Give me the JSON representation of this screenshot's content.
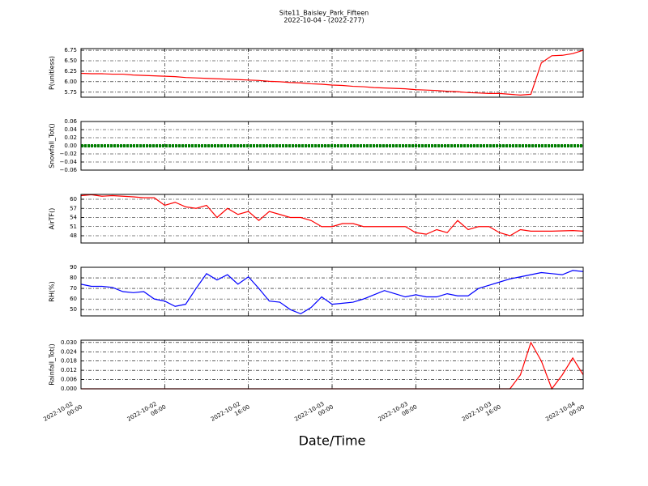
{
  "chart_data": [
    {
      "type": "line",
      "title": "Site11_Baisley_Park_Fifteen",
      "subtitle": "2022-10-04 - (2022-277)",
      "ylabel": "P(unitless)",
      "color": "#ff0000",
      "xlim": [
        "2022-10-02 00:00",
        "2022-10-04 00:00"
      ],
      "ylim": [
        5.63,
        6.79
      ],
      "grid": true,
      "yticks": [
        5.75,
        {
          "value": 6,
          "label": "6.00"
        },
        6.25,
        {
          "value": 6.5,
          "label": "6.50"
        },
        6.75
      ],
      "xticks": [
        "2022-10-02 00:00",
        "2022-10-02 08:00",
        "2022-10-02 16:00",
        "2022-10-03 00:00",
        "2022-10-03 08:00",
        "2022-10-03 16:00",
        "2022-10-04 00:00"
      ],
      "x": [
        "2022-10-02 00:00",
        "2022-10-02 01:00",
        "2022-10-02 02:00",
        "2022-10-02 03:00",
        "2022-10-02 04:00",
        "2022-10-02 05:00",
        "2022-10-02 06:00",
        "2022-10-02 07:00",
        "2022-10-02 08:00",
        "2022-10-02 09:00",
        "2022-10-02 10:00",
        "2022-10-02 11:00",
        "2022-10-02 12:00",
        "2022-10-02 13:00",
        "2022-10-02 14:00",
        "2022-10-02 15:00",
        "2022-10-02 16:00",
        "2022-10-02 17:00",
        "2022-10-02 18:00",
        "2022-10-02 19:00",
        "2022-10-02 20:00",
        "2022-10-02 21:00",
        "2022-10-02 22:00",
        "2022-10-02 23:00",
        "2022-10-03 00:00",
        "2022-10-03 01:00",
        "2022-10-03 02:00",
        "2022-10-03 03:00",
        "2022-10-03 04:00",
        "2022-10-03 05:00",
        "2022-10-03 06:00",
        "2022-10-03 07:00",
        "2022-10-03 08:00",
        "2022-10-03 09:00",
        "2022-10-03 10:00",
        "2022-10-03 11:00",
        "2022-10-03 12:00",
        "2022-10-03 13:00",
        "2022-10-03 14:00",
        "2022-10-03 15:00",
        "2022-10-03 16:00",
        "2022-10-03 17:00",
        "2022-10-03 18:00",
        "2022-10-03 19:00",
        "2022-10-03 20:00",
        "2022-10-03 21:00",
        "2022-10-03 22:00",
        "2022-10-03 23:00",
        "2022-10-04 00:00"
      ],
      "values": [
        6.2,
        6.19,
        6.19,
        6.18,
        6.18,
        6.16,
        6.15,
        6.14,
        6.13,
        6.12,
        6.1,
        6.09,
        6.08,
        6.07,
        6.06,
        6.05,
        6.04,
        6.03,
        6.01,
        6.0,
        5.98,
        5.97,
        5.95,
        5.94,
        5.92,
        5.91,
        5.89,
        5.88,
        5.86,
        5.85,
        5.84,
        5.83,
        5.81,
        5.8,
        5.79,
        5.77,
        5.76,
        5.74,
        5.73,
        5.72,
        5.72,
        5.7,
        5.68,
        5.7,
        6.45,
        6.62,
        6.63,
        6.67,
        6.75
      ]
    },
    {
      "type": "line",
      "ylabel": "Snowfall_Tot()",
      "color": "#008000",
      "xlim": [
        "2022-10-02 00:00",
        "2022-10-04 00:00"
      ],
      "ylim": [
        -0.06,
        0.06
      ],
      "grid": true,
      "yticks": [
        {
          "value": -0.06,
          "label": "−0.06"
        },
        {
          "value": -0.04,
          "label": "−0.04"
        },
        {
          "value": -0.02,
          "label": "−0.02"
        },
        {
          "value": 0,
          "label": "0.00"
        },
        0.02,
        0.04,
        0.06
      ],
      "xticks": [
        "2022-10-02 00:00",
        "2022-10-02 08:00",
        "2022-10-02 16:00",
        "2022-10-03 00:00",
        "2022-10-03 08:00",
        "2022-10-03 16:00",
        "2022-10-04 00:00"
      ],
      "x": [
        "2022-10-02 00:00",
        "2022-10-02 01:00",
        "2022-10-02 02:00",
        "2022-10-02 03:00",
        "2022-10-02 04:00",
        "2022-10-02 05:00",
        "2022-10-02 06:00",
        "2022-10-02 07:00",
        "2022-10-02 08:00",
        "2022-10-02 09:00",
        "2022-10-02 10:00",
        "2022-10-02 11:00",
        "2022-10-02 12:00",
        "2022-10-02 13:00",
        "2022-10-02 14:00",
        "2022-10-02 15:00",
        "2022-10-02 16:00",
        "2022-10-02 17:00",
        "2022-10-02 18:00",
        "2022-10-02 19:00",
        "2022-10-02 20:00",
        "2022-10-02 21:00",
        "2022-10-02 22:00",
        "2022-10-02 23:00",
        "2022-10-03 00:00",
        "2022-10-03 01:00",
        "2022-10-03 02:00",
        "2022-10-03 03:00",
        "2022-10-03 04:00",
        "2022-10-03 05:00",
        "2022-10-03 06:00",
        "2022-10-03 07:00",
        "2022-10-03 08:00",
        "2022-10-03 09:00",
        "2022-10-03 10:00",
        "2022-10-03 11:00",
        "2022-10-03 12:00",
        "2022-10-03 13:00",
        "2022-10-03 14:00",
        "2022-10-03 15:00",
        "2022-10-03 16:00",
        "2022-10-03 17:00",
        "2022-10-03 18:00",
        "2022-10-03 19:00",
        "2022-10-03 20:00",
        "2022-10-03 21:00",
        "2022-10-03 22:00",
        "2022-10-03 23:00",
        "2022-10-04 00:00"
      ],
      "values": [
        0,
        0,
        0,
        0,
        0,
        0,
        0,
        0,
        0,
        0,
        0,
        0,
        0,
        0,
        0,
        0,
        0,
        0,
        0,
        0,
        0,
        0,
        0,
        0,
        0,
        0,
        0,
        0,
        0,
        0,
        0,
        0,
        0,
        0,
        0,
        0,
        0,
        0,
        0,
        0,
        0,
        0,
        0,
        0,
        0,
        0,
        0,
        0,
        0
      ]
    },
    {
      "type": "line",
      "ylabel": "AirTF()",
      "color": "#ff0000",
      "xlim": [
        "2022-10-02 00:00",
        "2022-10-04 00:00"
      ],
      "ylim": [
        45.6,
        61.6
      ],
      "grid": true,
      "yticks": [
        48,
        51,
        54,
        57,
        60
      ],
      "xticks": [
        "2022-10-02 00:00",
        "2022-10-02 08:00",
        "2022-10-02 16:00",
        "2022-10-03 00:00",
        "2022-10-03 08:00",
        "2022-10-03 16:00",
        "2022-10-04 00:00"
      ],
      "x": [
        "2022-10-02 00:00",
        "2022-10-02 01:00",
        "2022-10-02 02:00",
        "2022-10-02 03:00",
        "2022-10-02 04:00",
        "2022-10-02 05:00",
        "2022-10-02 06:00",
        "2022-10-02 07:00",
        "2022-10-02 08:00",
        "2022-10-02 09:00",
        "2022-10-02 10:00",
        "2022-10-02 11:00",
        "2022-10-02 12:00",
        "2022-10-02 13:00",
        "2022-10-02 14:00",
        "2022-10-02 15:00",
        "2022-10-02 16:00",
        "2022-10-02 17:00",
        "2022-10-02 18:00",
        "2022-10-02 19:00",
        "2022-10-02 20:00",
        "2022-10-02 21:00",
        "2022-10-02 22:00",
        "2022-10-02 23:00",
        "2022-10-03 00:00",
        "2022-10-03 01:00",
        "2022-10-03 02:00",
        "2022-10-03 03:00",
        "2022-10-03 04:00",
        "2022-10-03 05:00",
        "2022-10-03 06:00",
        "2022-10-03 07:00",
        "2022-10-03 08:00",
        "2022-10-03 09:00",
        "2022-10-03 10:00",
        "2022-10-03 11:00",
        "2022-10-03 12:00",
        "2022-10-03 13:00",
        "2022-10-03 14:00",
        "2022-10-03 15:00",
        "2022-10-03 16:00",
        "2022-10-03 17:00",
        "2022-10-03 18:00",
        "2022-10-03 19:00",
        "2022-10-03 20:00",
        "2022-10-03 21:00",
        "2022-10-03 22:00",
        "2022-10-03 23:00",
        "2022-10-04 00:00"
      ],
      "values": [
        61.2,
        61.5,
        61,
        61.2,
        61,
        60.8,
        60.5,
        60.5,
        58,
        59,
        57.5,
        57,
        58,
        54,
        57,
        55,
        56,
        53,
        56,
        55,
        54,
        54,
        53,
        51,
        51,
        52,
        52,
        51,
        51,
        51,
        51,
        51,
        49,
        48.5,
        50,
        49,
        53,
        50,
        51,
        51,
        49,
        48,
        50,
        49.5,
        49.5,
        49.5,
        49.6,
        49.7,
        49.5
      ]
    },
    {
      "type": "line",
      "ylabel": "RH(%)",
      "color": "#0000ff",
      "xlim": [
        "2022-10-02 00:00",
        "2022-10-04 00:00"
      ],
      "ylim": [
        44,
        90
      ],
      "grid": true,
      "yticks": [
        50,
        60,
        70,
        80,
        90
      ],
      "xticks": [
        "2022-10-02 00:00",
        "2022-10-02 08:00",
        "2022-10-02 16:00",
        "2022-10-03 00:00",
        "2022-10-03 08:00",
        "2022-10-03 16:00",
        "2022-10-04 00:00"
      ],
      "x": [
        "2022-10-02 00:00",
        "2022-10-02 01:00",
        "2022-10-02 02:00",
        "2022-10-02 03:00",
        "2022-10-02 04:00",
        "2022-10-02 05:00",
        "2022-10-02 06:00",
        "2022-10-02 07:00",
        "2022-10-02 08:00",
        "2022-10-02 09:00",
        "2022-10-02 10:00",
        "2022-10-02 11:00",
        "2022-10-02 12:00",
        "2022-10-02 13:00",
        "2022-10-02 14:00",
        "2022-10-02 15:00",
        "2022-10-02 16:00",
        "2022-10-02 17:00",
        "2022-10-02 18:00",
        "2022-10-02 19:00",
        "2022-10-02 20:00",
        "2022-10-02 21:00",
        "2022-10-02 22:00",
        "2022-10-02 23:00",
        "2022-10-03 00:00",
        "2022-10-03 01:00",
        "2022-10-03 02:00",
        "2022-10-03 03:00",
        "2022-10-03 04:00",
        "2022-10-03 05:00",
        "2022-10-03 06:00",
        "2022-10-03 07:00",
        "2022-10-03 08:00",
        "2022-10-03 09:00",
        "2022-10-03 10:00",
        "2022-10-03 11:00",
        "2022-10-03 12:00",
        "2022-10-03 13:00",
        "2022-10-03 14:00",
        "2022-10-03 15:00",
        "2022-10-03 16:00",
        "2022-10-03 17:00",
        "2022-10-03 18:00",
        "2022-10-03 19:00",
        "2022-10-03 20:00",
        "2022-10-03 21:00",
        "2022-10-03 22:00",
        "2022-10-03 23:00",
        "2022-10-04 00:00"
      ],
      "values": [
        74,
        72,
        72,
        71,
        67,
        66,
        67,
        60,
        58,
        53,
        55,
        70,
        84,
        78,
        83,
        74,
        81,
        70,
        58,
        57,
        50,
        46,
        52,
        62,
        55,
        56,
        57,
        60,
        64,
        68,
        65,
        62,
        64,
        62,
        62,
        65,
        63,
        63,
        70,
        73,
        76,
        79,
        81,
        83,
        85,
        84,
        83,
        87,
        86
      ]
    },
    {
      "type": "line",
      "ylabel": "Rainfall_Tot()",
      "x_label": "Date/Time",
      "color": "#ff0000",
      "xlim": [
        "2022-10-02 00:00",
        "2022-10-04 00:00"
      ],
      "ylim": [
        0,
        0.0315
      ],
      "grid": true,
      "yticks": [
        {
          "value": 0,
          "label": "0.000"
        },
        0.006,
        0.012,
        0.018,
        0.024,
        {
          "value": 0.03,
          "label": "0.030"
        }
      ],
      "xticks": [
        {
          "value": "2022-10-02 00:00",
          "label": "2022-10-02\n00:00"
        },
        {
          "value": "2022-10-02 08:00",
          "label": "2022-10-02\n08:00"
        },
        {
          "value": "2022-10-02 16:00",
          "label": "2022-10-02\n16:00"
        },
        {
          "value": "2022-10-03 00:00",
          "label": "2022-10-03\n00:00"
        },
        {
          "value": "2022-10-03 08:00",
          "label": "2022-10-03\n08:00"
        },
        {
          "value": "2022-10-03 16:00",
          "label": "2022-10-03\n16:00"
        },
        {
          "value": "2022-10-04 00:00",
          "label": "2022-10-04\n00:00"
        }
      ],
      "x": [
        "2022-10-02 00:00",
        "2022-10-02 01:00",
        "2022-10-02 02:00",
        "2022-10-02 03:00",
        "2022-10-02 04:00",
        "2022-10-02 05:00",
        "2022-10-02 06:00",
        "2022-10-02 07:00",
        "2022-10-02 08:00",
        "2022-10-02 09:00",
        "2022-10-02 10:00",
        "2022-10-02 11:00",
        "2022-10-02 12:00",
        "2022-10-02 13:00",
        "2022-10-02 14:00",
        "2022-10-02 15:00",
        "2022-10-02 16:00",
        "2022-10-02 17:00",
        "2022-10-02 18:00",
        "2022-10-02 19:00",
        "2022-10-02 20:00",
        "2022-10-02 21:00",
        "2022-10-02 22:00",
        "2022-10-02 23:00",
        "2022-10-03 00:00",
        "2022-10-03 01:00",
        "2022-10-03 02:00",
        "2022-10-03 03:00",
        "2022-10-03 04:00",
        "2022-10-03 05:00",
        "2022-10-03 06:00",
        "2022-10-03 07:00",
        "2022-10-03 08:00",
        "2022-10-03 09:00",
        "2022-10-03 10:00",
        "2022-10-03 11:00",
        "2022-10-03 12:00",
        "2022-10-03 13:00",
        "2022-10-03 14:00",
        "2022-10-03 15:00",
        "2022-10-03 16:00",
        "2022-10-03 17:00",
        "2022-10-03 18:00",
        "2022-10-03 19:00",
        "2022-10-03 20:00",
        "2022-10-03 21:00",
        "2022-10-03 22:00",
        "2022-10-03 23:00",
        "2022-10-04 00:00"
      ],
      "values": [
        0,
        0,
        0,
        0,
        0,
        0,
        0,
        0,
        0,
        0,
        0,
        0,
        0,
        0,
        0,
        0,
        0,
        0,
        0,
        0,
        0,
        0,
        0,
        0,
        0,
        0,
        0,
        0,
        0,
        0,
        0,
        0,
        0,
        0,
        0,
        0,
        0,
        0,
        0,
        0,
        0,
        0,
        0.009,
        0.03,
        0.018,
        0,
        0.009,
        0.02,
        0.009
      ]
    }
  ]
}
